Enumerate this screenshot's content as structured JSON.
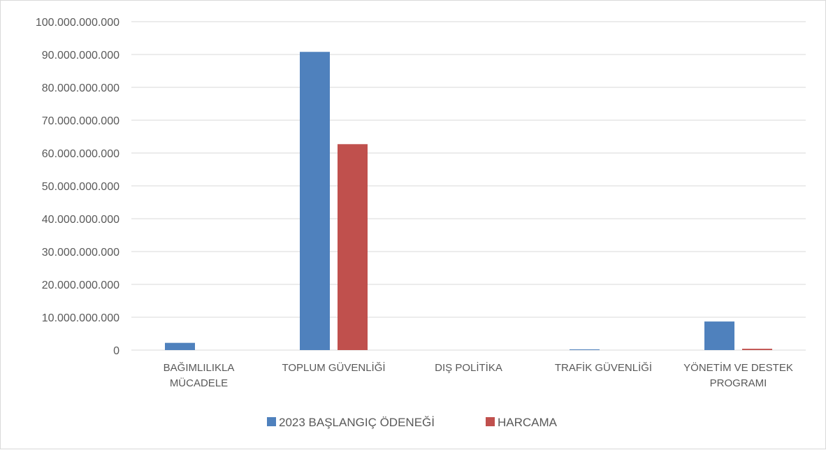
{
  "chart_data": {
    "type": "bar",
    "categories": [
      [
        "BAĞIMLILIKLA",
        "MÜCADELE"
      ],
      [
        "TOPLUM GÜVENLİĞİ"
      ],
      [
        "DIŞ POLİTİKA"
      ],
      [
        "TRAFİK GÜVENLİĞİ"
      ],
      [
        "YÖNETİM VE DESTEK",
        "PROGRAMI"
      ]
    ],
    "series": [
      {
        "name": "2023 BAŞLANGIÇ ÖDENEĞİ",
        "color": "#4f81bd",
        "values": [
          2200000000,
          90800000000,
          0,
          100000000,
          8700000000
        ]
      },
      {
        "name": "HARCAMA",
        "color": "#c0504d",
        "values": [
          0,
          62700000000,
          0,
          0,
          400000000
        ]
      }
    ],
    "y_ticks": [
      "0",
      "10.000.000.000",
      "20.000.000.000",
      "30.000.000.000",
      "40.000.000.000",
      "50.000.000.000",
      "60.000.000.000",
      "70.000.000.000",
      "80.000.000.000",
      "90.000.000.000",
      "100.000.000.000"
    ],
    "ylim": [
      0,
      100000000000
    ],
    "grid": true,
    "legend_position": "bottom"
  }
}
